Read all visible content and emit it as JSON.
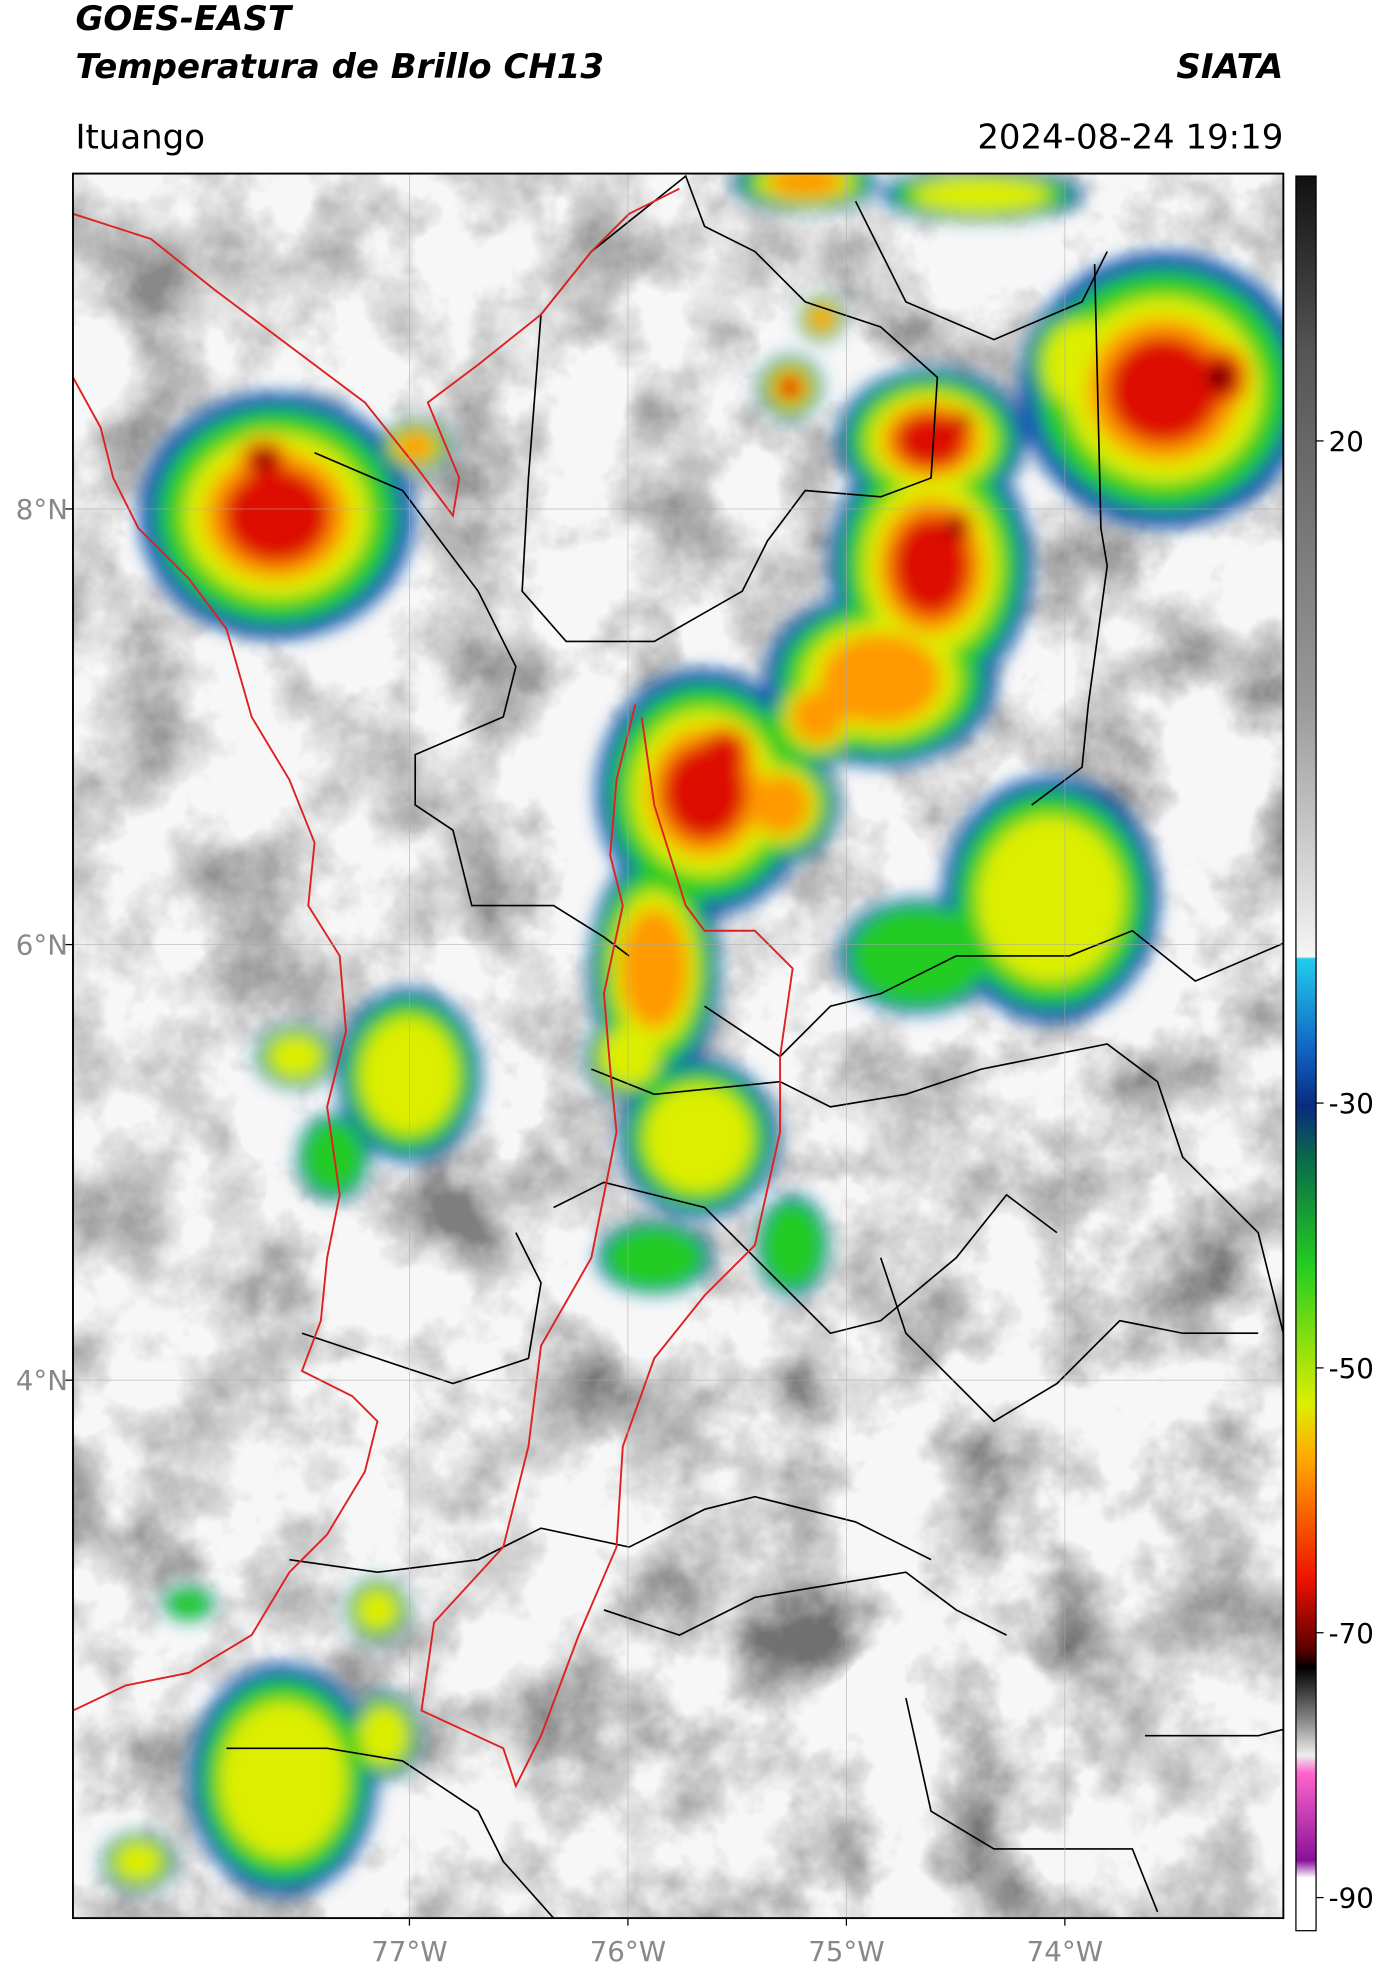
{
  "header": {
    "satellite": "GOES-EAST",
    "product": "Temperatura de Brillo CH13",
    "source": "SIATA",
    "location": "Ituango",
    "datetime": "2024-08-24 19:19"
  },
  "map": {
    "lon_lim": [
      -78.54,
      -73.0
    ],
    "lat_lim": [
      1.53,
      9.54
    ],
    "lon_ticks": [
      {
        "value": -77,
        "label": "77°W"
      },
      {
        "value": -76,
        "label": "76°W"
      },
      {
        "value": -75,
        "label": "75°W"
      },
      {
        "value": -74,
        "label": "74°W"
      }
    ],
    "lat_ticks": [
      {
        "value": 8,
        "label": "8°N"
      },
      {
        "value": 6,
        "label": "6°N"
      },
      {
        "value": 4,
        "label": "4°N"
      }
    ]
  },
  "colorbar": {
    "lim": [
      -92.5,
      40
    ],
    "ticks": [
      20,
      -30,
      -50,
      -70,
      -90
    ]
  }
}
